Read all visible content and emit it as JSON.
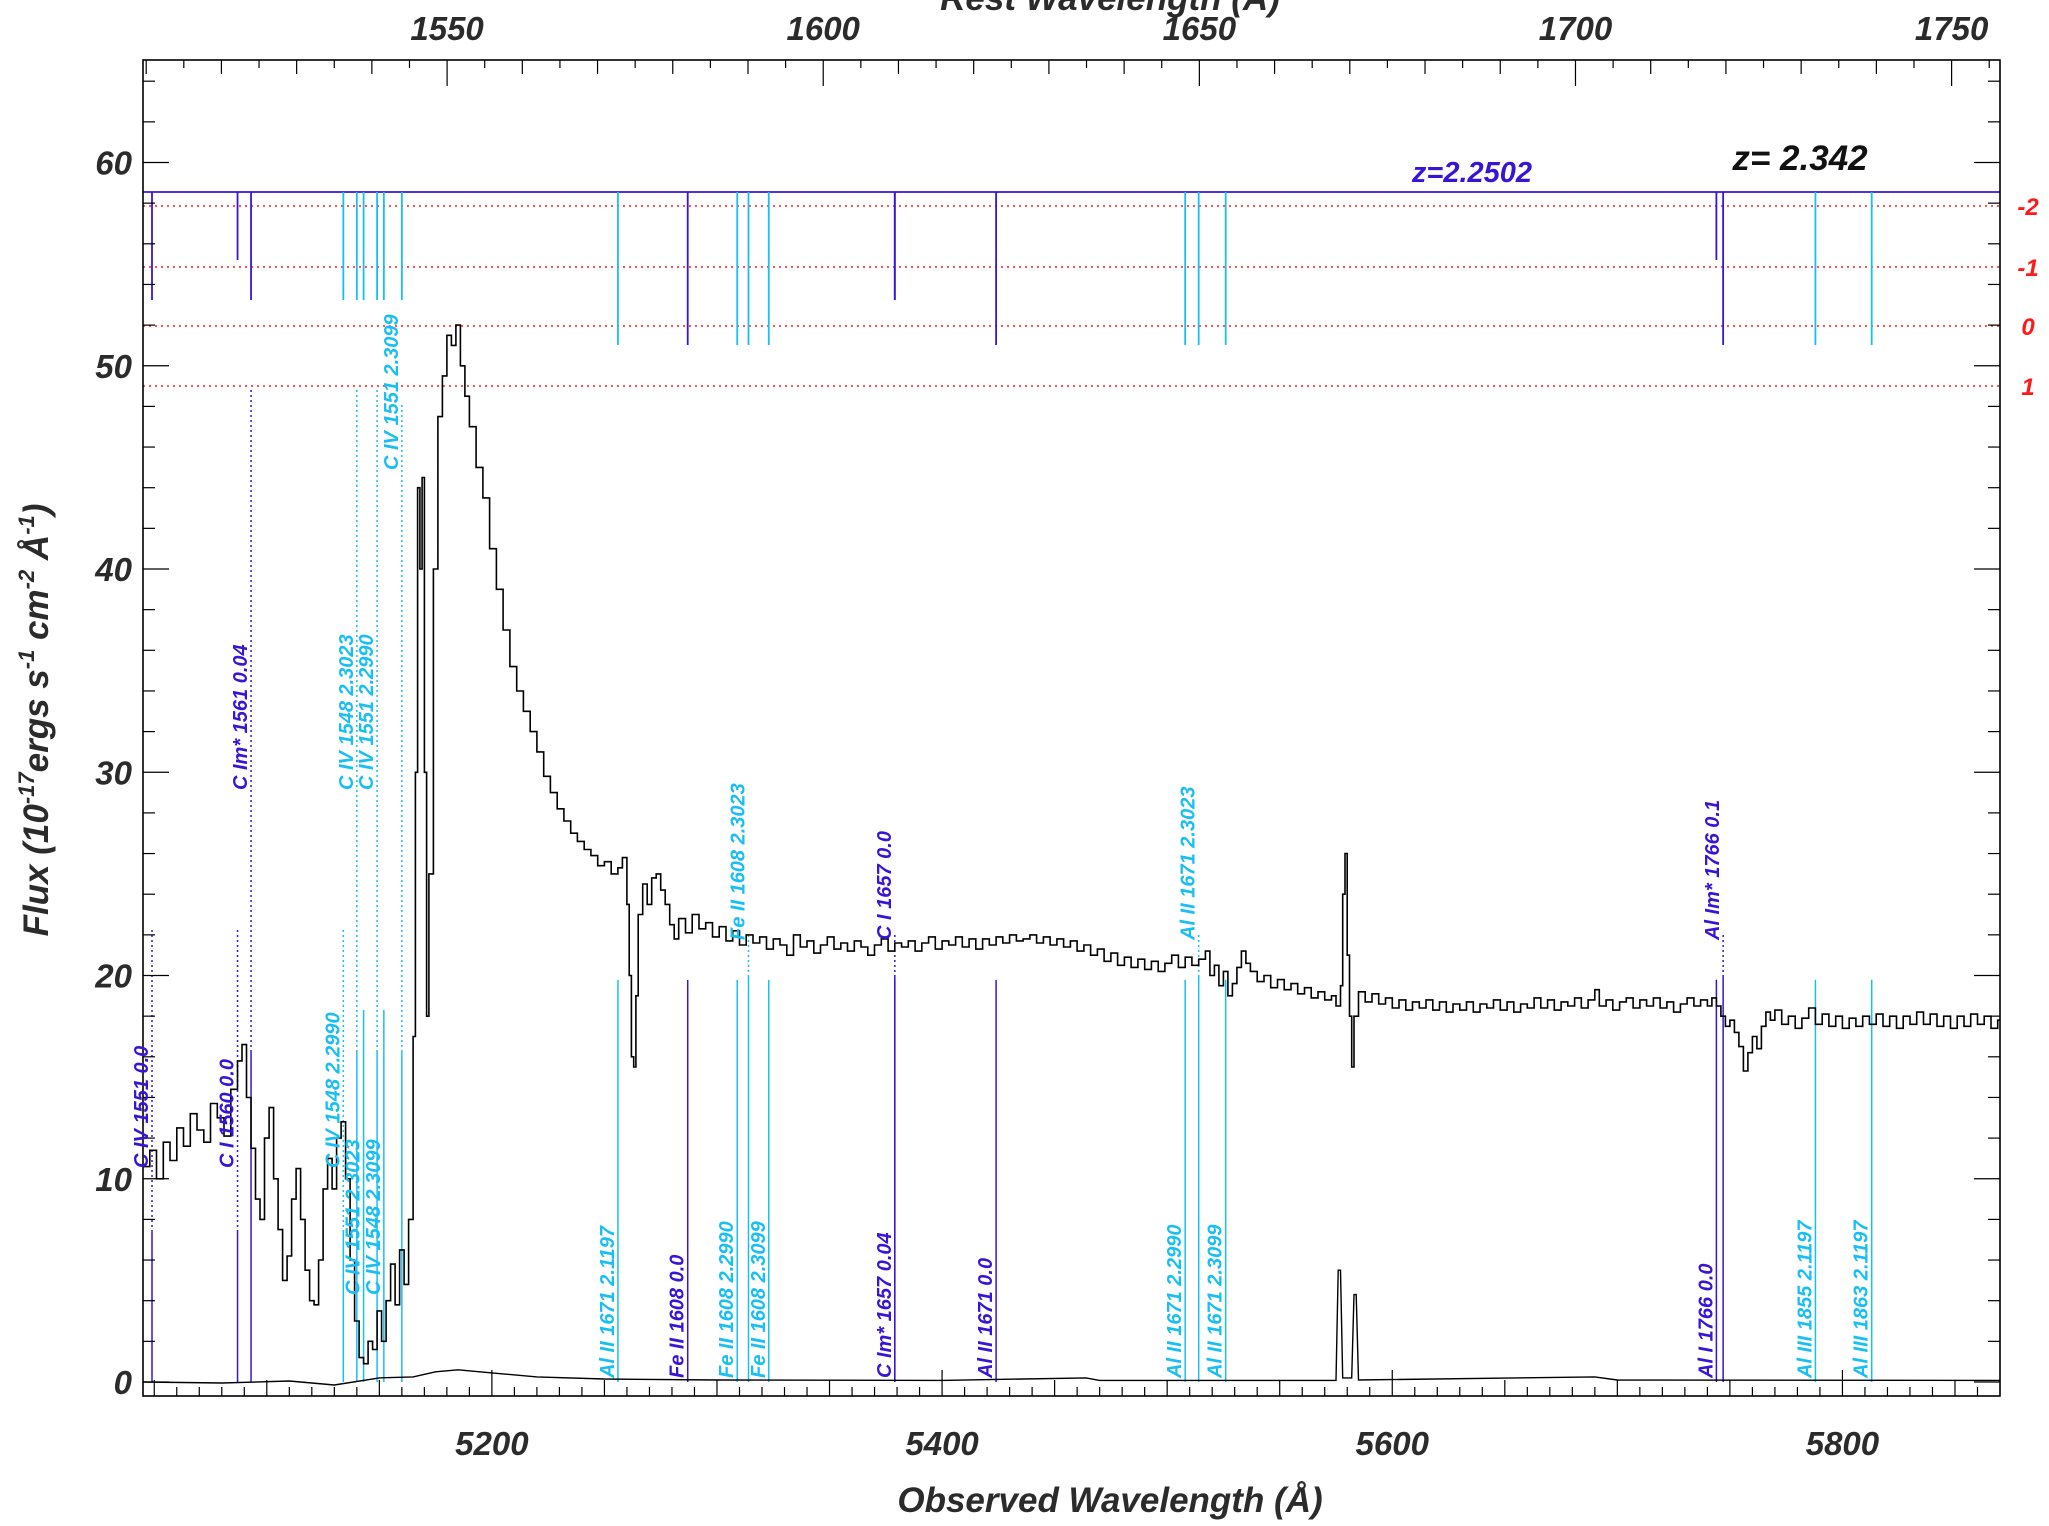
{
  "chart_data": {
    "type": "line",
    "xlabel": "Observed Wavelength (Å)",
    "ylabel": "Flux (10",
    "ylabel_sup1": "-17",
    "ylabel_mid": "ergs s",
    "ylabel_sup2": "-1",
    "ylabel_mid2": " cm",
    "ylabel_sup3": "-2",
    "ylabel_mid3": " Å",
    "ylabel_sup4": "-1",
    "ylabel_end": ")",
    "x2label": "Rest Wavelength (Å)",
    "xlim": [
      5045,
      5870
    ],
    "ylim": [
      -1,
      65
    ],
    "x2_redshift": 2.342,
    "xticks": [
      5200,
      5400,
      5600,
      5800
    ],
    "xtick_labels": [
      "5200",
      "5400",
      "5600",
      "5800"
    ],
    "yticks": [
      0,
      10,
      20,
      30,
      40,
      50,
      60
    ],
    "ytick_labels": [
      "0",
      "10",
      "20",
      "30",
      "40",
      "50",
      "60"
    ],
    "x2ticks": [
      1550,
      1600,
      1650,
      1700,
      1750
    ],
    "x2tick_labels": [
      "1550",
      "1600",
      "1650",
      "1700",
      "1750"
    ],
    "series_flux": [
      [
        5045,
        10.6
      ],
      [
        5048,
        11.4
      ],
      [
        5051,
        10.0
      ],
      [
        5054,
        11.8
      ],
      [
        5057,
        10.9
      ],
      [
        5060,
        12.5
      ],
      [
        5063,
        11.6
      ],
      [
        5066,
        13.2
      ],
      [
        5069,
        12.4
      ],
      [
        5072,
        11.8
      ],
      [
        5075,
        13.7
      ],
      [
        5078,
        13.0
      ],
      [
        5081,
        12.1
      ],
      [
        5084,
        14.4
      ],
      [
        5087,
        15.8
      ],
      [
        5089,
        16.6
      ],
      [
        5091,
        14.0
      ],
      [
        5093,
        11.5
      ],
      [
        5095,
        9.0
      ],
      [
        5097,
        8.0
      ],
      [
        5099,
        12.0
      ],
      [
        5101,
        13.5
      ],
      [
        5103,
        10.0
      ],
      [
        5105,
        7.5
      ],
      [
        5107,
        5.0
      ],
      [
        5109,
        6.2
      ],
      [
        5111,
        9.0
      ],
      [
        5113,
        10.5
      ],
      [
        5115,
        8.0
      ],
      [
        5117,
        5.5
      ],
      [
        5119,
        4.0
      ],
      [
        5121,
        3.8
      ],
      [
        5123,
        6.0
      ],
      [
        5125,
        9.5
      ],
      [
        5127,
        11.0
      ],
      [
        5129,
        9.5
      ],
      [
        5131,
        12.0
      ],
      [
        5133,
        12.8
      ],
      [
        5135,
        10.0
      ],
      [
        5137,
        6.0
      ],
      [
        5139,
        3.0
      ],
      [
        5141,
        1.2
      ],
      [
        5143,
        0.9
      ],
      [
        5145,
        2.0
      ],
      [
        5147,
        1.6
      ],
      [
        5149,
        3.5
      ],
      [
        5151,
        2.0
      ],
      [
        5153,
        4.0
      ],
      [
        5155,
        5.8
      ],
      [
        5157,
        3.8
      ],
      [
        5159,
        6.5
      ],
      [
        5161,
        4.8
      ],
      [
        5163,
        8.0
      ],
      [
        5165,
        17.0
      ],
      [
        5166,
        30.0
      ],
      [
        5167,
        44.0
      ],
      [
        5168,
        40.0
      ],
      [
        5169,
        44.5
      ],
      [
        5170,
        30.0
      ],
      [
        5171,
        18.0
      ],
      [
        5172,
        25.0
      ],
      [
        5174,
        40.0
      ],
      [
        5176,
        47.5
      ],
      [
        5178,
        49.5
      ],
      [
        5180,
        51.5
      ],
      [
        5182,
        51.0
      ],
      [
        5184,
        52.0
      ],
      [
        5186,
        50.0
      ],
      [
        5188,
        48.5
      ],
      [
        5190,
        47.0
      ],
      [
        5193,
        45.0
      ],
      [
        5196,
        43.5
      ],
      [
        5199,
        41.0
      ],
      [
        5202,
        39.0
      ],
      [
        5205,
        37.0
      ],
      [
        5208,
        35.2
      ],
      [
        5211,
        34.0
      ],
      [
        5214,
        33.0
      ],
      [
        5217,
        32.0
      ],
      [
        5220,
        31.0
      ],
      [
        5223,
        29.8
      ],
      [
        5226,
        29.0
      ],
      [
        5229,
        28.2
      ],
      [
        5232,
        27.6
      ],
      [
        5235,
        27.0
      ],
      [
        5238,
        26.6
      ],
      [
        5241,
        26.2
      ],
      [
        5244,
        25.9
      ],
      [
        5247,
        25.4
      ],
      [
        5250,
        25.6
      ],
      [
        5253,
        25.0
      ],
      [
        5256,
        25.3
      ],
      [
        5258,
        25.8
      ],
      [
        5260,
        23.5
      ],
      [
        5261,
        20.0
      ],
      [
        5262,
        16.0
      ],
      [
        5263,
        15.5
      ],
      [
        5264,
        19.0
      ],
      [
        5265,
        23.0
      ],
      [
        5267,
        24.5
      ],
      [
        5269,
        23.5
      ],
      [
        5271,
        24.8
      ],
      [
        5273,
        25.0
      ],
      [
        5275,
        24.2
      ],
      [
        5277,
        23.5
      ],
      [
        5279,
        22.5
      ],
      [
        5281,
        21.8
      ],
      [
        5283,
        22.8
      ],
      [
        5286,
        22.1
      ],
      [
        5289,
        23.0
      ],
      [
        5292,
        22.3
      ],
      [
        5295,
        22.6
      ],
      [
        5298,
        21.9
      ],
      [
        5301,
        22.4
      ],
      [
        5304,
        21.7
      ],
      [
        5307,
        22.2
      ],
      [
        5310,
        21.5
      ],
      [
        5313,
        22.0
      ],
      [
        5316,
        21.6
      ],
      [
        5319,
        21.9
      ],
      [
        5322,
        21.3
      ],
      [
        5325,
        21.8
      ],
      [
        5328,
        21.5
      ],
      [
        5331,
        21.0
      ],
      [
        5334,
        22.0
      ],
      [
        5337,
        21.4
      ],
      [
        5340,
        21.7
      ],
      [
        5343,
        21.1
      ],
      [
        5346,
        21.5
      ],
      [
        5349,
        21.9
      ],
      [
        5352,
        21.3
      ],
      [
        5355,
        21.6
      ],
      [
        5358,
        21.2
      ],
      [
        5361,
        21.7
      ],
      [
        5364,
        21.4
      ],
      [
        5367,
        21.0
      ],
      [
        5370,
        21.5
      ],
      [
        5373,
        21.8
      ],
      [
        5376,
        21.2
      ],
      [
        5379,
        21.6
      ],
      [
        5382,
        21.4
      ],
      [
        5385,
        21.7
      ],
      [
        5388,
        21.2
      ],
      [
        5391,
        21.6
      ],
      [
        5394,
        21.9
      ],
      [
        5397,
        21.3
      ],
      [
        5400,
        21.7
      ],
      [
        5403,
        21.5
      ],
      [
        5406,
        21.9
      ],
      [
        5409,
        21.4
      ],
      [
        5412,
        21.8
      ],
      [
        5415,
        21.3
      ],
      [
        5418,
        21.8
      ],
      [
        5421,
        21.5
      ],
      [
        5424,
        21.9
      ],
      [
        5427,
        21.6
      ],
      [
        5430,
        22.0
      ],
      [
        5433,
        21.7
      ],
      [
        5436,
        21.8
      ],
      [
        5439,
        22.0
      ],
      [
        5442,
        21.6
      ],
      [
        5445,
        21.9
      ],
      [
        5448,
        21.5
      ],
      [
        5451,
        21.8
      ],
      [
        5454,
        21.4
      ],
      [
        5457,
        21.7
      ],
      [
        5460,
        21.2
      ],
      [
        5463,
        21.5
      ],
      [
        5466,
        21.0
      ],
      [
        5469,
        21.3
      ],
      [
        5472,
        20.7
      ],
      [
        5475,
        21.1
      ],
      [
        5478,
        20.5
      ],
      [
        5481,
        20.9
      ],
      [
        5484,
        20.4
      ],
      [
        5487,
        20.8
      ],
      [
        5490,
        20.3
      ],
      [
        5493,
        20.7
      ],
      [
        5496,
        20.2
      ],
      [
        5499,
        20.6
      ],
      [
        5502,
        21.0
      ],
      [
        5505,
        20.4
      ],
      [
        5508,
        20.9
      ],
      [
        5511,
        20.5
      ],
      [
        5514,
        20.8
      ],
      [
        5517,
        21.2
      ],
      [
        5519,
        20.0
      ],
      [
        5521,
        20.5
      ],
      [
        5523,
        19.5
      ],
      [
        5525,
        20.2
      ],
      [
        5527,
        19.0
      ],
      [
        5529,
        19.6
      ],
      [
        5531,
        20.4
      ],
      [
        5533,
        21.2
      ],
      [
        5535,
        20.6
      ],
      [
        5537,
        20.2
      ],
      [
        5540,
        19.7
      ],
      [
        5543,
        20.0
      ],
      [
        5546,
        19.4
      ],
      [
        5549,
        19.8
      ],
      [
        5552,
        19.3
      ],
      [
        5555,
        19.6
      ],
      [
        5558,
        19.1
      ],
      [
        5561,
        19.4
      ],
      [
        5564,
        18.9
      ],
      [
        5567,
        19.2
      ],
      [
        5570,
        18.8
      ],
      [
        5573,
        19.0
      ],
      [
        5575,
        18.5
      ],
      [
        5577,
        19.5
      ],
      [
        5578,
        24.0
      ],
      [
        5579,
        26.0
      ],
      [
        5580,
        21.0
      ],
      [
        5581,
        18.0
      ],
      [
        5582,
        15.5
      ],
      [
        5583,
        18.0
      ],
      [
        5585,
        19.2
      ],
      [
        5588,
        18.7
      ],
      [
        5591,
        19.1
      ],
      [
        5594,
        18.6
      ],
      [
        5597,
        18.9
      ],
      [
        5600,
        18.4
      ],
      [
        5603,
        18.8
      ],
      [
        5606,
        18.3
      ],
      [
        5609,
        18.7
      ],
      [
        5612,
        18.4
      ],
      [
        5615,
        18.8
      ],
      [
        5618,
        18.3
      ],
      [
        5621,
        18.7
      ],
      [
        5624,
        18.2
      ],
      [
        5627,
        18.6
      ],
      [
        5630,
        18.3
      ],
      [
        5633,
        18.7
      ],
      [
        5636,
        18.2
      ],
      [
        5639,
        18.6
      ],
      [
        5642,
        18.4
      ],
      [
        5645,
        18.8
      ],
      [
        5648,
        18.3
      ],
      [
        5651,
        18.7
      ],
      [
        5654,
        18.2
      ],
      [
        5657,
        18.6
      ],
      [
        5660,
        18.4
      ],
      [
        5663,
        18.9
      ],
      [
        5666,
        18.4
      ],
      [
        5669,
        18.8
      ],
      [
        5672,
        18.3
      ],
      [
        5675,
        18.7
      ],
      [
        5678,
        18.5
      ],
      [
        5681,
        18.9
      ],
      [
        5684,
        18.4
      ],
      [
        5687,
        18.8
      ],
      [
        5690,
        19.3
      ],
      [
        5692,
        18.5
      ],
      [
        5695,
        18.8
      ],
      [
        5698,
        18.3
      ],
      [
        5701,
        18.7
      ],
      [
        5704,
        18.9
      ],
      [
        5707,
        18.4
      ],
      [
        5710,
        18.8
      ],
      [
        5713,
        18.5
      ],
      [
        5716,
        18.9
      ],
      [
        5719,
        18.4
      ],
      [
        5722,
        18.7
      ],
      [
        5725,
        18.2
      ],
      [
        5728,
        18.6
      ],
      [
        5731,
        18.9
      ],
      [
        5734,
        18.5
      ],
      [
        5737,
        18.8
      ],
      [
        5740,
        18.5
      ],
      [
        5742,
        18.9
      ],
      [
        5744,
        18.5
      ],
      [
        5746,
        18.0
      ],
      [
        5748,
        17.5
      ],
      [
        5750,
        17.8
      ],
      [
        5752,
        17.2
      ],
      [
        5754,
        16.5
      ],
      [
        5756,
        15.3
      ],
      [
        5758,
        16.2
      ],
      [
        5760,
        17.0
      ],
      [
        5762,
        16.4
      ],
      [
        5764,
        17.5
      ],
      [
        5766,
        18.2
      ],
      [
        5768,
        17.8
      ],
      [
        5770,
        18.3
      ],
      [
        5773,
        17.6
      ],
      [
        5776,
        18.0
      ],
      [
        5779,
        17.4
      ],
      [
        5782,
        17.9
      ],
      [
        5785,
        18.4
      ],
      [
        5788,
        17.6
      ],
      [
        5791,
        18.1
      ],
      [
        5794,
        17.5
      ],
      [
        5797,
        18.0
      ],
      [
        5800,
        17.4
      ],
      [
        5803,
        17.9
      ],
      [
        5806,
        17.5
      ],
      [
        5809,
        18.0
      ],
      [
        5812,
        17.6
      ],
      [
        5815,
        18.1
      ],
      [
        5818,
        17.5
      ],
      [
        5821,
        18.0
      ],
      [
        5824,
        17.4
      ],
      [
        5827,
        18.0
      ],
      [
        5830,
        17.6
      ],
      [
        5833,
        18.2
      ],
      [
        5836,
        17.6
      ],
      [
        5839,
        18.1
      ],
      [
        5842,
        17.5
      ],
      [
        5845,
        18.0
      ],
      [
        5848,
        17.4
      ],
      [
        5851,
        18.0
      ],
      [
        5854,
        17.5
      ],
      [
        5857,
        18.1
      ],
      [
        5860,
        17.6
      ],
      [
        5863,
        18.0
      ],
      [
        5866,
        17.4
      ],
      [
        5869,
        17.8
      ]
    ],
    "series_error": [
      [
        5045,
        0.0
      ],
      [
        5080,
        -0.05
      ],
      [
        5110,
        0.05
      ],
      [
        5130,
        -0.15
      ],
      [
        5150,
        0.2
      ],
      [
        5165,
        0.25
      ],
      [
        5175,
        0.5
      ],
      [
        5185,
        0.6
      ],
      [
        5200,
        0.45
      ],
      [
        5220,
        0.25
      ],
      [
        5250,
        0.15
      ],
      [
        5300,
        0.1
      ],
      [
        5400,
        0.08
      ],
      [
        5464,
        0.2
      ],
      [
        5470,
        0.08
      ],
      [
        5575,
        0.08
      ],
      [
        5576,
        5.5
      ],
      [
        5577,
        5.5
      ],
      [
        5578,
        0.2
      ],
      [
        5582,
        0.2
      ],
      [
        5583,
        4.3
      ],
      [
        5584,
        4.3
      ],
      [
        5585,
        0.1
      ],
      [
        5690,
        0.25
      ],
      [
        5700,
        0.1
      ],
      [
        5870,
        0.08
      ]
    ],
    "redshift_bar_z": "z=2.2502",
    "quasar_z": "z= 2.342",
    "residual_levels": [
      -2,
      -1,
      0,
      1
    ],
    "residual_labels": [
      "-2",
      "-1",
      "0",
      "1"
    ],
    "colors": {
      "primary": "#3a14d6",
      "secondary": "#19bff2",
      "residual": "#ff1a1a",
      "spectrum": "#000000"
    },
    "lines": [
      {
        "x": 5049,
        "label": "C IV 1551 0.0",
        "color": "primary",
        "pos": "low",
        "tick": "-1"
      },
      {
        "x": 5087,
        "label": "C I 1560 0.0",
        "color": "primary",
        "pos": "low",
        "tick": "-2"
      },
      {
        "x": 5093,
        "label": "C Im* 1561 0.04",
        "color": "primary",
        "pos": "high",
        "tick": "-1"
      },
      {
        "x": 5134,
        "label": "C IV 1548 2.2990",
        "color": "secondary",
        "pos": "low",
        "tick": "-1"
      },
      {
        "x": 5140,
        "label": "C IV 1548 2.3023",
        "color": "secondary",
        "pos": "high",
        "tick": "-1"
      },
      {
        "x": 5143,
        "label": "C IV 1551 2.3023",
        "color": "secondary",
        "pos": "vlow",
        "tick": "-1"
      },
      {
        "x": 5149,
        "label": "C IV 1551 2.2990",
        "color": "secondary",
        "pos": "high",
        "tick": "-1"
      },
      {
        "x": 5152,
        "label": "C IV 1548 2.3099",
        "color": "secondary",
        "pos": "vlow",
        "tick": "-1"
      },
      {
        "x": 5160,
        "label": "C IV 1551 2.3099",
        "color": "secondary",
        "pos": "top",
        "tick": "-1"
      },
      {
        "x": 5256,
        "label": "Al II 1671 2.1197",
        "color": "secondary",
        "pos": "bottom",
        "tick": "0"
      },
      {
        "x": 5287,
        "label": "Fe II 1608 0.0",
        "color": "primary",
        "pos": "bottom",
        "tick": "0"
      },
      {
        "x": 5309,
        "label": "Fe II 1608 2.2990",
        "color": "secondary",
        "pos": "bottom",
        "tick": "0"
      },
      {
        "x": 5314,
        "label": "Fe II 1608 2.3023",
        "color": "secondary",
        "pos": "mid",
        "tick": "0"
      },
      {
        "x": 5323,
        "label": "Fe II 1608 2.3099",
        "color": "secondary",
        "pos": "bottom",
        "tick": "0"
      },
      {
        "x": 5379,
        "label": "C I 1657 0.0",
        "color": "primary",
        "pos": "mid",
        "tick": "-1"
      },
      {
        "x": 5379,
        "label": "C Im* 1657 0.04",
        "color": "primary",
        "pos": "bottom",
        "tick": "-1"
      },
      {
        "x": 5424,
        "label": "Al II 1671 0.0",
        "color": "primary",
        "pos": "bottom",
        "tick": "0"
      },
      {
        "x": 5508,
        "label": "Al II 1671 2.2990",
        "color": "secondary",
        "pos": "bottom",
        "tick": "0"
      },
      {
        "x": 5514,
        "label": "Al II 1671 2.3023",
        "color": "secondary",
        "pos": "mid",
        "tick": "0"
      },
      {
        "x": 5526,
        "label": "Al II 1671 2.3099",
        "color": "secondary",
        "pos": "bottom",
        "tick": "0"
      },
      {
        "x": 5744,
        "label": "Al I 1766 0.0",
        "color": "primary",
        "pos": "bottom",
        "tick": "-2"
      },
      {
        "x": 5747,
        "label": "Al Im* 1766 0.1",
        "color": "primary",
        "pos": "mid",
        "tick": "0"
      },
      {
        "x": 5788,
        "label": "Al III 1855 2.1197",
        "color": "secondary",
        "pos": "bottom",
        "tick": "0"
      },
      {
        "x": 5813,
        "label": "Al III 1863 2.1197",
        "color": "secondary",
        "pos": "bottom",
        "tick": "0"
      }
    ]
  }
}
